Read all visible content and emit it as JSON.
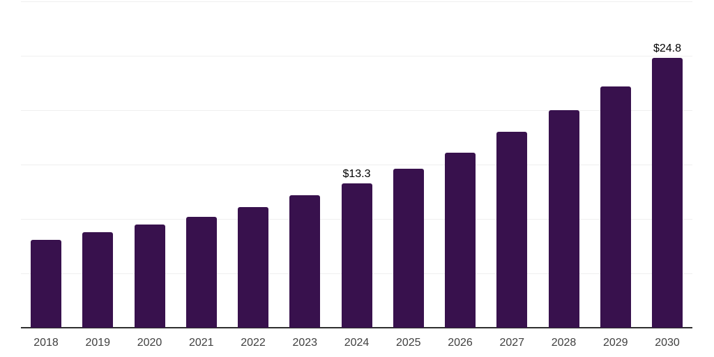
{
  "chart_data": {
    "type": "bar",
    "title": "",
    "xlabel": "",
    "ylabel": "",
    "categories": [
      "2018",
      "2019",
      "2020",
      "2021",
      "2022",
      "2023",
      "2024",
      "2025",
      "2026",
      "2027",
      "2028",
      "2029",
      "2030"
    ],
    "values": [
      8.1,
      8.8,
      9.5,
      10.2,
      11.1,
      12.2,
      13.3,
      14.6,
      16.1,
      18.0,
      20.0,
      22.2,
      24.8
    ],
    "data_labels": [
      "",
      "",
      "",
      "",
      "",
      "",
      "$13.3",
      "",
      "",
      "",
      "",
      "",
      "$24.8"
    ],
    "ylim": [
      0,
      30
    ],
    "grid_step": 5,
    "grid": true,
    "legend": false,
    "bar_color": "#38114d",
    "gridline_color": "#efefef",
    "axis_line_color": "#2e2e2e",
    "data_label_color": "#000000",
    "tick_label_color": "#404040"
  }
}
